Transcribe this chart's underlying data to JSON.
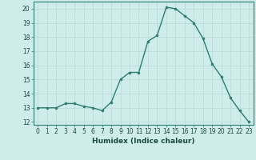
{
  "x": [
    0,
    1,
    2,
    3,
    4,
    5,
    6,
    7,
    8,
    9,
    10,
    11,
    12,
    13,
    14,
    15,
    16,
    17,
    18,
    19,
    20,
    21,
    22,
    23
  ],
  "y": [
    13,
    13,
    13,
    13.3,
    13.3,
    13.1,
    13,
    12.8,
    13.4,
    15,
    15.5,
    15.5,
    17.7,
    18.1,
    20.1,
    20,
    19.5,
    19,
    17.9,
    16.1,
    15.2,
    13.7,
    12.8,
    12
  ],
  "line_color": "#2e7d6e",
  "marker": "o",
  "marker_size": 2,
  "line_width": 1.0,
  "bg_color": "#ceecea",
  "grid_color": "#b8d8d5",
  "xlabel": "Humidex (Indice chaleur)",
  "xlim": [
    -0.5,
    23.5
  ],
  "ylim": [
    11.8,
    20.5
  ],
  "yticks": [
    12,
    13,
    14,
    15,
    16,
    17,
    18,
    19,
    20
  ],
  "xticks": [
    0,
    1,
    2,
    3,
    4,
    5,
    6,
    7,
    8,
    9,
    10,
    11,
    12,
    13,
    14,
    15,
    16,
    17,
    18,
    19,
    20,
    21,
    22,
    23
  ],
  "tick_label_size": 5.5,
  "xlabel_size": 6.5
}
